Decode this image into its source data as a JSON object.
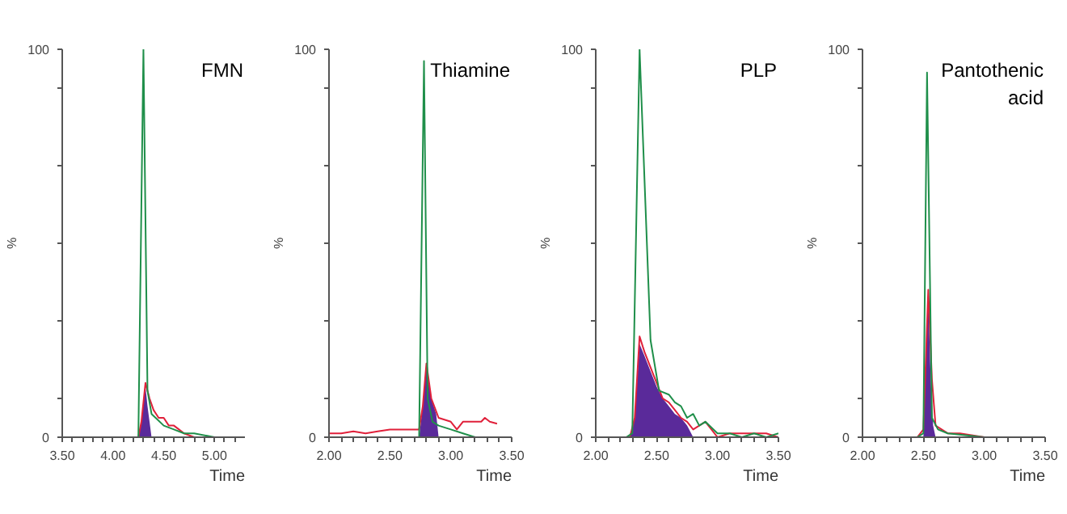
{
  "chart_data": [
    {
      "type": "line",
      "title": "FMN",
      "xlabel": "Time",
      "ylabel": "%",
      "xlim": [
        3.5,
        5.3
      ],
      "ylim": [
        0,
        100
      ],
      "grid": false,
      "xticks": [
        {
          "value": 3.5,
          "label": "3.50"
        },
        {
          "value": 3.6,
          "label": null
        },
        {
          "value": 3.7,
          "label": null
        },
        {
          "value": 3.8,
          "label": null
        },
        {
          "value": 3.9,
          "label": null
        },
        {
          "value": 4.0,
          "label": "4.00"
        },
        {
          "value": 4.1,
          "label": null
        },
        {
          "value": 4.2,
          "label": null
        },
        {
          "value": 4.3,
          "label": null
        },
        {
          "value": 4.4,
          "label": null
        },
        {
          "value": 4.5,
          "label": "4.50"
        },
        {
          "value": 4.6,
          "label": null
        },
        {
          "value": 4.7,
          "label": null
        },
        {
          "value": 4.8,
          "label": null
        },
        {
          "value": 4.9,
          "label": null
        },
        {
          "value": 5.0,
          "label": "5.00"
        },
        {
          "value": 5.1,
          "label": null
        },
        {
          "value": 5.2,
          "label": null
        }
      ],
      "yticks": [
        0,
        {
          "value": 10,
          "label": null
        },
        {
          "value": 30,
          "label": null
        },
        {
          "value": 50,
          "label": null
        },
        {
          "value": 70,
          "label": null
        },
        {
          "value": 90,
          "label": null
        },
        100
      ],
      "series": [
        {
          "type": "area",
          "color": "#5a2a9a",
          "x": [
            4.25,
            4.28,
            4.32,
            4.34,
            4.36,
            4.38
          ],
          "values": [
            0,
            4,
            13,
            8,
            4,
            0
          ]
        },
        {
          "color": "#e0203a",
          "x": [
            4.25,
            4.28,
            4.32,
            4.36,
            4.4,
            4.45,
            4.5,
            4.55,
            4.6,
            4.65,
            4.7,
            4.8
          ],
          "values": [
            0,
            4,
            14,
            10,
            7,
            5,
            5,
            3,
            3,
            2,
            1,
            0
          ]
        },
        {
          "color": "#1f8f4a",
          "x": [
            3.5,
            4.0,
            4.25,
            4.3,
            4.34,
            4.38,
            4.42,
            4.5,
            4.6,
            4.7,
            4.8,
            5.0,
            5.25
          ],
          "values": [
            0,
            0,
            0,
            100,
            12,
            6,
            5,
            3,
            2,
            1,
            1,
            0,
            0
          ]
        }
      ]
    },
    {
      "type": "line",
      "title": "Thiamine",
      "xlabel": "Time",
      "ylabel": "%",
      "xlim": [
        2.0,
        3.5
      ],
      "ylim": [
        0,
        100
      ],
      "grid": false,
      "xticks": [
        {
          "value": 2.0,
          "label": "2.00"
        },
        {
          "value": 2.1,
          "label": null
        },
        {
          "value": 2.2,
          "label": null
        },
        {
          "value": 2.3,
          "label": null
        },
        {
          "value": 2.4,
          "label": null
        },
        {
          "value": 2.5,
          "label": "2.50"
        },
        {
          "value": 2.6,
          "label": null
        },
        {
          "value": 2.7,
          "label": null
        },
        {
          "value": 2.8,
          "label": null
        },
        {
          "value": 2.9,
          "label": null
        },
        {
          "value": 3.0,
          "label": "3.00"
        },
        {
          "value": 3.1,
          "label": null
        },
        {
          "value": 3.2,
          "label": null
        },
        {
          "value": 3.3,
          "label": null
        },
        {
          "value": 3.4,
          "label": null
        },
        {
          "value": 3.5,
          "label": "3.50"
        }
      ],
      "yticks": [
        0,
        {
          "value": 10,
          "label": null
        },
        {
          "value": 30,
          "label": null
        },
        {
          "value": 50,
          "label": null
        },
        {
          "value": 70,
          "label": null
        },
        {
          "value": 90,
          "label": null
        },
        100
      ],
      "series": [
        {
          "type": "area",
          "color": "#5a2a9a",
          "x": [
            2.74,
            2.77,
            2.8,
            2.84,
            2.88,
            2.9
          ],
          "values": [
            0,
            8,
            18,
            10,
            6,
            0
          ]
        },
        {
          "color": "#e0203a",
          "x": [
            2.0,
            2.1,
            2.2,
            2.3,
            2.4,
            2.5,
            2.6,
            2.7,
            2.74,
            2.77,
            2.8,
            2.84,
            2.9,
            3.0,
            3.05,
            3.1,
            3.2,
            3.25,
            3.28,
            3.32,
            3.38
          ],
          "values": [
            1,
            1,
            1.5,
            1,
            1.5,
            2,
            2,
            2,
            2,
            8,
            19,
            10,
            5,
            4,
            2,
            4,
            4,
            4,
            5,
            4,
            3.5
          ]
        },
        {
          "color": "#1f8f4a",
          "x": [
            2.0,
            2.5,
            2.74,
            2.78,
            2.81,
            2.85,
            2.9,
            3.0,
            3.1,
            3.2,
            3.45
          ],
          "values": [
            0,
            0,
            0,
            97,
            10,
            4,
            3,
            2,
            1,
            0,
            0
          ]
        }
      ]
    },
    {
      "type": "line",
      "title": "PLP",
      "xlabel": "Time",
      "ylabel": "%",
      "xlim": [
        2.0,
        3.5
      ],
      "ylim": [
        0,
        100
      ],
      "grid": false,
      "xticks": [
        {
          "value": 2.0,
          "label": "2.00"
        },
        {
          "value": 2.1,
          "label": null
        },
        {
          "value": 2.2,
          "label": null
        },
        {
          "value": 2.3,
          "label": null
        },
        {
          "value": 2.4,
          "label": null
        },
        {
          "value": 2.5,
          "label": "2.50"
        },
        {
          "value": 2.6,
          "label": null
        },
        {
          "value": 2.7,
          "label": null
        },
        {
          "value": 2.8,
          "label": null
        },
        {
          "value": 2.9,
          "label": null
        },
        {
          "value": 3.0,
          "label": "3.00"
        },
        {
          "value": 3.1,
          "label": null
        },
        {
          "value": 3.2,
          "label": null
        },
        {
          "value": 3.3,
          "label": null
        },
        {
          "value": 3.4,
          "label": null
        },
        {
          "value": 3.5,
          "label": "3.50"
        }
      ],
      "yticks": [
        0,
        {
          "value": 10,
          "label": null
        },
        {
          "value": 30,
          "label": null
        },
        {
          "value": 50,
          "label": null
        },
        {
          "value": 70,
          "label": null
        },
        {
          "value": 90,
          "label": null
        },
        100
      ],
      "series": [
        {
          "type": "area",
          "color": "#5a2a9a",
          "x": [
            2.28,
            2.32,
            2.36,
            2.4,
            2.45,
            2.5,
            2.55,
            2.6,
            2.65,
            2.7,
            2.75,
            2.8
          ],
          "values": [
            0,
            5,
            24,
            21,
            17,
            13,
            10,
            8,
            6,
            5,
            3,
            0
          ]
        },
        {
          "color": "#e0203a",
          "x": [
            2.0,
            2.28,
            2.32,
            2.36,
            2.4,
            2.45,
            2.5,
            2.55,
            2.6,
            2.65,
            2.7,
            2.75,
            2.8,
            2.85,
            2.9,
            2.95,
            3.0,
            3.1,
            3.2,
            3.3,
            3.4,
            3.5
          ],
          "values": [
            0,
            0,
            5,
            26,
            22,
            18,
            14,
            10,
            9,
            7,
            5,
            4,
            2,
            3,
            4,
            2,
            0,
            1,
            1,
            1,
            1,
            0
          ]
        },
        {
          "color": "#1f8f4a",
          "x": [
            2.0,
            2.25,
            2.3,
            2.36,
            2.45,
            2.52,
            2.6,
            2.65,
            2.7,
            2.75,
            2.8,
            2.85,
            2.9,
            3.0,
            3.1,
            3.2,
            3.3,
            3.4,
            3.5
          ],
          "values": [
            0,
            0,
            1,
            100,
            25,
            12,
            11,
            9,
            8,
            5,
            6,
            3,
            4,
            1,
            1,
            0,
            1,
            0,
            1
          ]
        }
      ]
    },
    {
      "type": "line",
      "title": "Pantothenic acid",
      "xlabel": "Time",
      "ylabel": "%",
      "xlim": [
        2.0,
        3.5
      ],
      "ylim": [
        0,
        100
      ],
      "grid": false,
      "xticks": [
        {
          "value": 2.0,
          "label": "2.00"
        },
        {
          "value": 2.1,
          "label": null
        },
        {
          "value": 2.2,
          "label": null
        },
        {
          "value": 2.3,
          "label": null
        },
        {
          "value": 2.4,
          "label": null
        },
        {
          "value": 2.5,
          "label": "2.50"
        },
        {
          "value": 2.6,
          "label": null
        },
        {
          "value": 2.7,
          "label": null
        },
        {
          "value": 2.8,
          "label": null
        },
        {
          "value": 2.9,
          "label": null
        },
        {
          "value": 3.0,
          "label": "3.00"
        },
        {
          "value": 3.1,
          "label": null
        },
        {
          "value": 3.2,
          "label": null
        },
        {
          "value": 3.3,
          "label": null
        },
        {
          "value": 3.4,
          "label": null
        },
        {
          "value": 3.5,
          "label": "3.50"
        }
      ],
      "yticks": [
        0,
        {
          "value": 10,
          "label": null
        },
        {
          "value": 30,
          "label": null
        },
        {
          "value": 50,
          "label": null
        },
        {
          "value": 70,
          "label": null
        },
        {
          "value": 90,
          "label": null
        },
        100
      ],
      "series": [
        {
          "type": "area",
          "color": "#5a2a9a",
          "x": [
            2.5,
            2.52,
            2.54,
            2.56,
            2.58,
            2.6
          ],
          "values": [
            0,
            20,
            36,
            15,
            3,
            0
          ]
        },
        {
          "color": "#e0203a",
          "x": [
            2.45,
            2.5,
            2.54,
            2.57,
            2.6,
            2.65,
            2.7,
            2.8,
            3.0
          ],
          "values": [
            0,
            2,
            38,
            15,
            3,
            2,
            1,
            1,
            0
          ]
        },
        {
          "color": "#1f8f4a",
          "x": [
            2.0,
            2.45,
            2.5,
            2.53,
            2.57,
            2.62,
            2.7,
            3.0,
            3.45
          ],
          "values": [
            0,
            0,
            1,
            94,
            5,
            2,
            1,
            0,
            0
          ]
        }
      ]
    }
  ]
}
